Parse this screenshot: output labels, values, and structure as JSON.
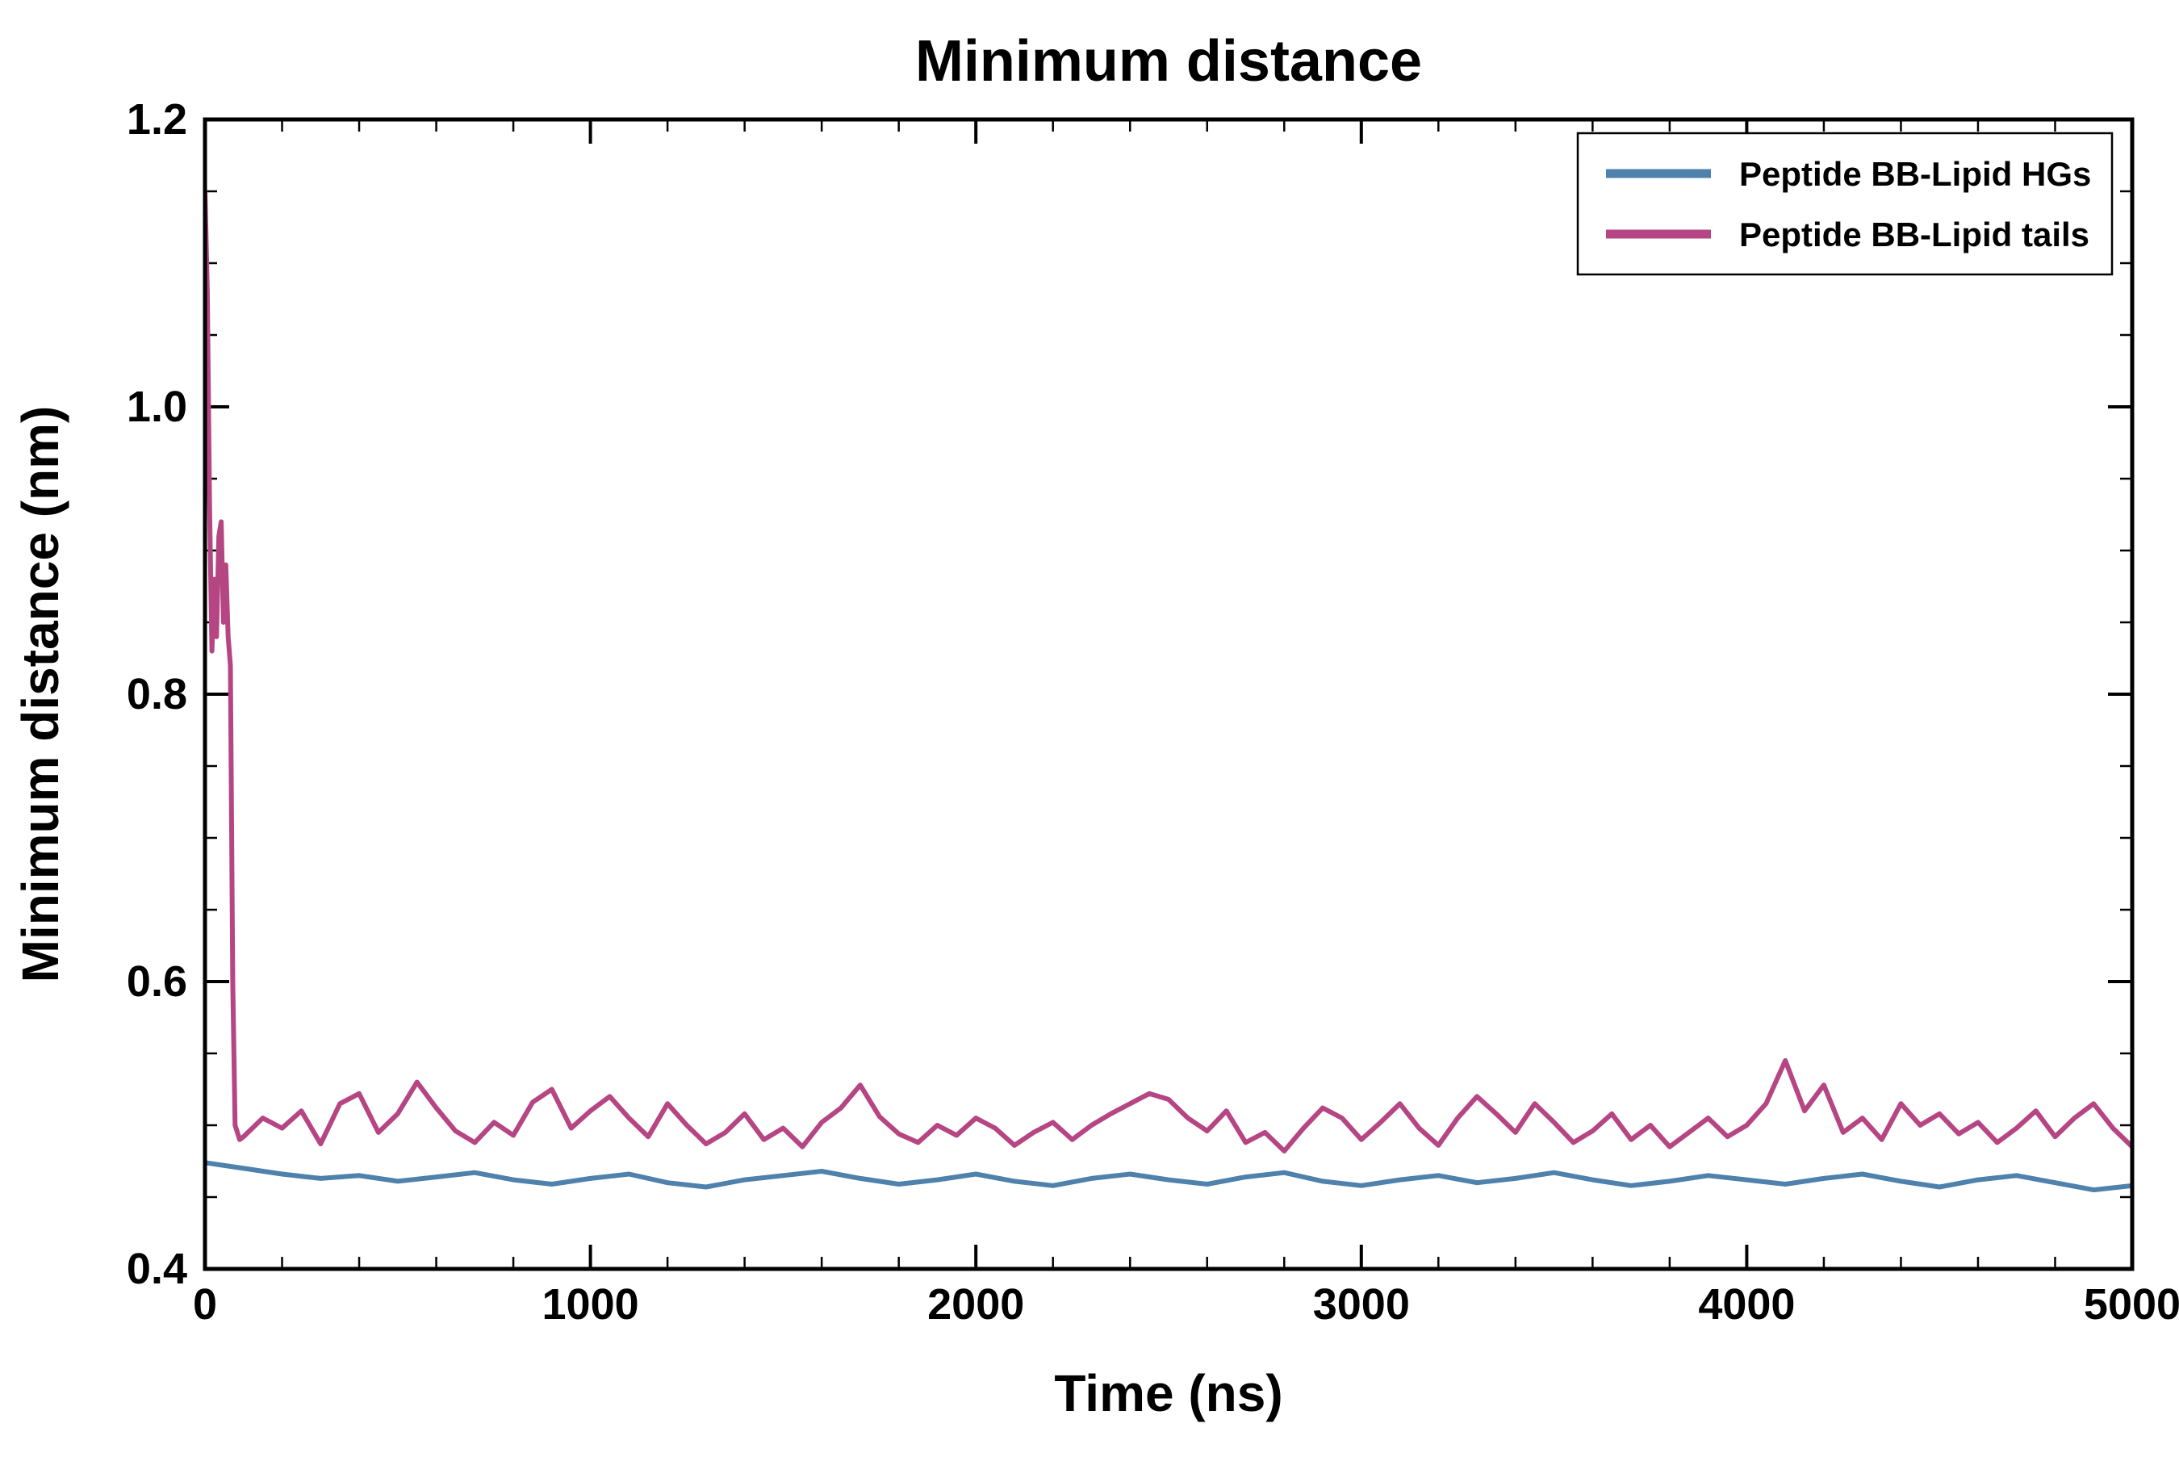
{
  "chart_data": {
    "type": "line",
    "title": "Minimum distance",
    "xlabel": "Time (ns)",
    "ylabel": "Minimum distance (nm)",
    "xlim": [
      0,
      5000
    ],
    "ylim": [
      0.4,
      1.2
    ],
    "xticks": [
      0,
      1000,
      2000,
      3000,
      4000,
      5000
    ],
    "xtick_labels": [
      "0",
      "1000",
      "2000",
      "3000",
      "4000",
      "5000"
    ],
    "yticks": [
      0.4,
      0.6,
      0.8,
      1.0,
      1.2
    ],
    "ytick_labels": [
      "0.4",
      "0.6",
      "0.8",
      "1.0",
      "1.2"
    ],
    "x_minor_step": 200,
    "y_minor_step": 0.05,
    "grid": false,
    "legend_position": "top-right",
    "frame_color": "#000000",
    "series": [
      {
        "name": "Peptide BB-Lipid HGs",
        "color": "#4f81ad",
        "points": [
          [
            0,
            0.474
          ],
          [
            100,
            0.47
          ],
          [
            200,
            0.466
          ],
          [
            300,
            0.463
          ],
          [
            400,
            0.465
          ],
          [
            500,
            0.461
          ],
          [
            600,
            0.464
          ],
          [
            700,
            0.467
          ],
          [
            800,
            0.462
          ],
          [
            900,
            0.459
          ],
          [
            1000,
            0.463
          ],
          [
            1100,
            0.466
          ],
          [
            1200,
            0.46
          ],
          [
            1300,
            0.457
          ],
          [
            1400,
            0.462
          ],
          [
            1500,
            0.465
          ],
          [
            1600,
            0.468
          ],
          [
            1700,
            0.463
          ],
          [
            1800,
            0.459
          ],
          [
            1900,
            0.462
          ],
          [
            2000,
            0.466
          ],
          [
            2100,
            0.461
          ],
          [
            2200,
            0.458
          ],
          [
            2300,
            0.463
          ],
          [
            2400,
            0.466
          ],
          [
            2500,
            0.462
          ],
          [
            2600,
            0.459
          ],
          [
            2700,
            0.464
          ],
          [
            2800,
            0.467
          ],
          [
            2900,
            0.461
          ],
          [
            3000,
            0.458
          ],
          [
            3100,
            0.462
          ],
          [
            3200,
            0.465
          ],
          [
            3300,
            0.46
          ],
          [
            3400,
            0.463
          ],
          [
            3500,
            0.467
          ],
          [
            3600,
            0.462
          ],
          [
            3700,
            0.458
          ],
          [
            3800,
            0.461
          ],
          [
            3900,
            0.465
          ],
          [
            4000,
            0.462
          ],
          [
            4100,
            0.459
          ],
          [
            4200,
            0.463
          ],
          [
            4300,
            0.466
          ],
          [
            4400,
            0.461
          ],
          [
            4500,
            0.457
          ],
          [
            4600,
            0.462
          ],
          [
            4700,
            0.465
          ],
          [
            4800,
            0.46
          ],
          [
            4900,
            0.455
          ],
          [
            5000,
            0.458
          ]
        ]
      },
      {
        "name": "Peptide BB-Lipid tails",
        "color": "#b64583",
        "points": [
          [
            0,
            1.15
          ],
          [
            6,
            1.08
          ],
          [
            12,
            0.93
          ],
          [
            18,
            0.83
          ],
          [
            24,
            0.88
          ],
          [
            30,
            0.84
          ],
          [
            36,
            0.91
          ],
          [
            42,
            0.92
          ],
          [
            48,
            0.85
          ],
          [
            54,
            0.89
          ],
          [
            60,
            0.84
          ],
          [
            66,
            0.82
          ],
          [
            72,
            0.6
          ],
          [
            78,
            0.5
          ],
          [
            90,
            0.49
          ],
          [
            100,
            0.492
          ],
          [
            150,
            0.505
          ],
          [
            200,
            0.498
          ],
          [
            250,
            0.51
          ],
          [
            300,
            0.487
          ],
          [
            350,
            0.515
          ],
          [
            400,
            0.522
          ],
          [
            450,
            0.495
          ],
          [
            500,
            0.508
          ],
          [
            550,
            0.53
          ],
          [
            600,
            0.512
          ],
          [
            650,
            0.496
          ],
          [
            700,
            0.488
          ],
          [
            750,
            0.502
          ],
          [
            800,
            0.493
          ],
          [
            850,
            0.516
          ],
          [
            900,
            0.525
          ],
          [
            950,
            0.498
          ],
          [
            1000,
            0.51
          ],
          [
            1050,
            0.52
          ],
          [
            1100,
            0.505
          ],
          [
            1150,
            0.492
          ],
          [
            1200,
            0.515
          ],
          [
            1250,
            0.5
          ],
          [
            1300,
            0.487
          ],
          [
            1350,
            0.495
          ],
          [
            1400,
            0.508
          ],
          [
            1450,
            0.49
          ],
          [
            1500,
            0.498
          ],
          [
            1550,
            0.485
          ],
          [
            1600,
            0.502
          ],
          [
            1650,
            0.512
          ],
          [
            1700,
            0.528
          ],
          [
            1750,
            0.506
          ],
          [
            1800,
            0.494
          ],
          [
            1850,
            0.488
          ],
          [
            1900,
            0.5
          ],
          [
            1950,
            0.493
          ],
          [
            2000,
            0.505
          ],
          [
            2050,
            0.498
          ],
          [
            2100,
            0.486
          ],
          [
            2150,
            0.495
          ],
          [
            2200,
            0.502
          ],
          [
            2250,
            0.49
          ],
          [
            2300,
            0.5
          ],
          [
            2350,
            0.508
          ],
          [
            2400,
            0.515
          ],
          [
            2450,
            0.522
          ],
          [
            2500,
            0.518
          ],
          [
            2550,
            0.505
          ],
          [
            2600,
            0.496
          ],
          [
            2650,
            0.51
          ],
          [
            2700,
            0.488
          ],
          [
            2750,
            0.495
          ],
          [
            2800,
            0.482
          ],
          [
            2850,
            0.498
          ],
          [
            2900,
            0.512
          ],
          [
            2950,
            0.505
          ],
          [
            3000,
            0.49
          ],
          [
            3050,
            0.502
          ],
          [
            3100,
            0.515
          ],
          [
            3150,
            0.498
          ],
          [
            3200,
            0.486
          ],
          [
            3250,
            0.505
          ],
          [
            3300,
            0.52
          ],
          [
            3350,
            0.508
          ],
          [
            3400,
            0.495
          ],
          [
            3450,
            0.515
          ],
          [
            3500,
            0.502
          ],
          [
            3550,
            0.488
          ],
          [
            3600,
            0.496
          ],
          [
            3650,
            0.508
          ],
          [
            3700,
            0.49
          ],
          [
            3750,
            0.5
          ],
          [
            3800,
            0.485
          ],
          [
            3850,
            0.495
          ],
          [
            3900,
            0.505
          ],
          [
            3950,
            0.492
          ],
          [
            4000,
            0.5
          ],
          [
            4050,
            0.515
          ],
          [
            4100,
            0.545
          ],
          [
            4150,
            0.51
          ],
          [
            4200,
            0.528
          ],
          [
            4250,
            0.495
          ],
          [
            4300,
            0.505
          ],
          [
            4350,
            0.49
          ],
          [
            4400,
            0.515
          ],
          [
            4450,
            0.5
          ],
          [
            4500,
            0.508
          ],
          [
            4550,
            0.494
          ],
          [
            4600,
            0.502
          ],
          [
            4650,
            0.488
          ],
          [
            4700,
            0.498
          ],
          [
            4750,
            0.51
          ],
          [
            4800,
            0.492
          ],
          [
            4850,
            0.505
          ],
          [
            4900,
            0.515
          ],
          [
            4950,
            0.498
          ],
          [
            5000,
            0.485
          ]
        ]
      }
    ]
  }
}
